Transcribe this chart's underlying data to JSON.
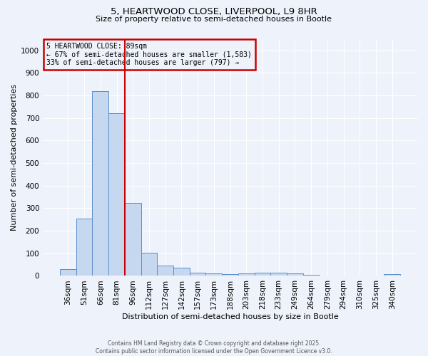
{
  "title_line1": "5, HEARTWOOD CLOSE, LIVERPOOL, L9 8HR",
  "title_line2": "Size of property relative to semi-detached houses in Bootle",
  "xlabel": "Distribution of semi-detached houses by size in Bootle",
  "ylabel": "Number of semi-detached properties",
  "categories": [
    "36sqm",
    "51sqm",
    "66sqm",
    "81sqm",
    "96sqm",
    "112sqm",
    "127sqm",
    "142sqm",
    "157sqm",
    "173sqm",
    "188sqm",
    "203sqm",
    "218sqm",
    "233sqm",
    "249sqm",
    "264sqm",
    "279sqm",
    "294sqm",
    "310sqm",
    "325sqm",
    "340sqm"
  ],
  "values": [
    30,
    255,
    820,
    720,
    325,
    103,
    45,
    35,
    15,
    10,
    7,
    12,
    15,
    15,
    10,
    5,
    3,
    2,
    1,
    1,
    7
  ],
  "bar_color": "#c5d8f0",
  "bar_edge_color": "#5b8fc9",
  "background_color": "#eef2fa",
  "red_line_x": 3.5,
  "annotation_title": "5 HEARTWOOD CLOSE: 89sqm",
  "annotation_line2": "← 67% of semi-detached houses are smaller (1,583)",
  "annotation_line3": "33% of semi-detached houses are larger (797) →",
  "annotation_box_color": "#cc0000",
  "ylim": [
    0,
    1050
  ],
  "yticks": [
    0,
    100,
    200,
    300,
    400,
    500,
    600,
    700,
    800,
    900,
    1000
  ],
  "footnote_line1": "Contains HM Land Registry data © Crown copyright and database right 2025.",
  "footnote_line2": "Contains public sector information licensed under the Open Government Licence v3.0."
}
